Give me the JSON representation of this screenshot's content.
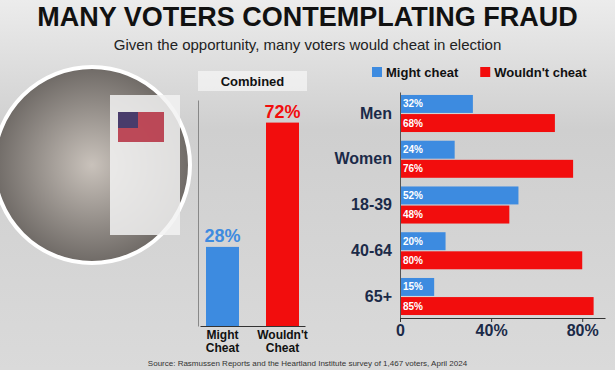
{
  "title": "MANY VOTERS CONTEMPLATING FRAUD",
  "subtitle": "Given the opportunity, many voters would cheat in election",
  "source": "Source: Rasmussen Reports and the Heartland Institute survey of 1,467 voters, April 2024",
  "chart_data": [
    {
      "type": "bar",
      "title": "Combined",
      "categories": [
        "Might Cheat",
        "Wouldn't Cheat"
      ],
      "values": [
        28,
        72
      ],
      "value_labels": [
        "28%",
        "72%"
      ],
      "colors": [
        "#3d8be0",
        "#f20d0d"
      ],
      "ylim": [
        0,
        80
      ],
      "data_labels": true,
      "tick_labels": "x"
    },
    {
      "type": "bar",
      "orientation": "horizontal",
      "legend": "top",
      "data_labels": true,
      "categories": [
        "Men",
        "Women",
        "18-39",
        "40-64",
        "65+"
      ],
      "series": [
        {
          "name": "Might cheat",
          "color": "#3d8be0",
          "values": [
            32,
            24,
            52,
            20,
            15
          ],
          "value_labels": [
            "32%",
            "24%",
            "52%",
            "20%",
            "15%"
          ]
        },
        {
          "name": "Wouldn't cheat",
          "color": "#f20d0d",
          "values": [
            68,
            76,
            48,
            80,
            85
          ],
          "value_labels": [
            "68%",
            "76%",
            "48%",
            "80%",
            "85%"
          ]
        }
      ],
      "xlim": [
        0,
        90
      ],
      "xticks": [
        0,
        {
          "value": 40,
          "label": "40%"
        },
        {
          "value": 80,
          "label": "80%"
        }
      ]
    }
  ]
}
